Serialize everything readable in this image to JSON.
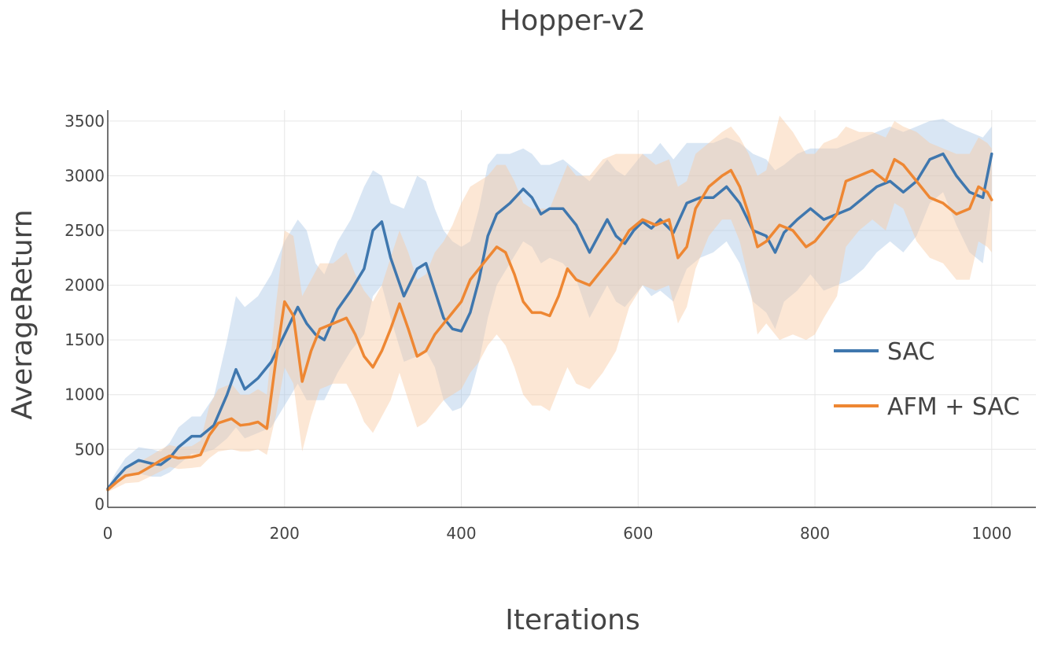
{
  "chart_data": {
    "type": "line",
    "title": "Hopper-v2",
    "xlabel": "Iterations",
    "ylabel": "AverageReturn",
    "xlim": [
      0,
      1050
    ],
    "ylim": [
      -30,
      3600
    ],
    "x_ticks": [
      0,
      200,
      400,
      600,
      800,
      1000
    ],
    "y_ticks": [
      0,
      500,
      1000,
      1500,
      2000,
      2500,
      3000,
      3500
    ],
    "grid": true,
    "legend_position": "right",
    "series": [
      {
        "name": "SAC",
        "color": "#3f77ae",
        "band_color": "#aac8e6",
        "x": [
          0,
          10,
          20,
          35,
          50,
          60,
          70,
          80,
          95,
          105,
          120,
          135,
          145,
          155,
          170,
          185,
          200,
          215,
          225,
          235,
          245,
          260,
          275,
          290,
          300,
          310,
          320,
          335,
          350,
          360,
          370,
          380,
          390,
          400,
          410,
          420,
          430,
          440,
          455,
          470,
          480,
          490,
          500,
          515,
          530,
          545,
          555,
          565,
          575,
          585,
          595,
          605,
          615,
          625,
          640,
          655,
          670,
          685,
          700,
          715,
          730,
          745,
          755,
          765,
          780,
          795,
          810,
          825,
          840,
          855,
          870,
          885,
          900,
          915,
          930,
          945,
          960,
          975,
          990,
          1000
        ],
        "values": [
          140,
          240,
          330,
          400,
          370,
          360,
          420,
          520,
          620,
          620,
          720,
          1000,
          1230,
          1050,
          1150,
          1300,
          1550,
          1800,
          1650,
          1550,
          1500,
          1780,
          1950,
          2150,
          2500,
          2580,
          2250,
          1900,
          2150,
          2200,
          1950,
          1700,
          1600,
          1580,
          1750,
          2050,
          2450,
          2650,
          2750,
          2880,
          2800,
          2650,
          2700,
          2700,
          2550,
          2300,
          2450,
          2600,
          2450,
          2380,
          2500,
          2580,
          2520,
          2600,
          2480,
          2750,
          2800,
          2800,
          2900,
          2750,
          2500,
          2450,
          2300,
          2480,
          2600,
          2700,
          2600,
          2650,
          2700,
          2800,
          2900,
          2950,
          2850,
          2950,
          3150,
          3200,
          3000,
          2850,
          2800,
          3200
        ],
        "upper": [
          160,
          300,
          420,
          520,
          500,
          480,
          560,
          700,
          800,
          800,
          980,
          1500,
          1900,
          1800,
          1900,
          2100,
          2400,
          2600,
          2500,
          2200,
          2100,
          2400,
          2600,
          2900,
          3050,
          3000,
          2750,
          2700,
          3000,
          2950,
          2700,
          2500,
          2400,
          2350,
          2400,
          2700,
          3100,
          3200,
          3200,
          3250,
          3200,
          3100,
          3100,
          3150,
          3050,
          2950,
          3050,
          3150,
          3050,
          3000,
          3100,
          3200,
          3200,
          3300,
          3150,
          3300,
          3300,
          3300,
          3350,
          3300,
          3200,
          3150,
          3050,
          3100,
          3200,
          3250,
          3250,
          3250,
          3300,
          3350,
          3400,
          3450,
          3400,
          3450,
          3500,
          3520,
          3450,
          3400,
          3350,
          3450
        ],
        "lower": [
          120,
          180,
          240,
          280,
          250,
          250,
          290,
          360,
          460,
          460,
          500,
          600,
          700,
          600,
          650,
          700,
          900,
          1100,
          950,
          950,
          950,
          1200,
          1400,
          1550,
          1900,
          2000,
          1700,
          1300,
          1350,
          1400,
          1250,
          950,
          850,
          880,
          1000,
          1300,
          1700,
          2000,
          2200,
          2400,
          2350,
          2200,
          2250,
          2200,
          2050,
          1700,
          1850,
          2000,
          1850,
          1800,
          1900,
          2000,
          1900,
          1950,
          1850,
          2150,
          2250,
          2300,
          2400,
          2200,
          1850,
          1750,
          1600,
          1850,
          1950,
          2100,
          1950,
          2000,
          2050,
          2150,
          2300,
          2400,
          2300,
          2450,
          2750,
          2850,
          2550,
          2300,
          2200,
          2800
        ]
      },
      {
        "name": "AFM + SAC",
        "color": "#ee8733",
        "band_color": "#f9c9a2",
        "x": [
          0,
          10,
          20,
          35,
          50,
          60,
          70,
          80,
          95,
          105,
          115,
          125,
          140,
          150,
          160,
          170,
          180,
          190,
          200,
          210,
          220,
          230,
          240,
          255,
          270,
          280,
          290,
          300,
          310,
          320,
          330,
          340,
          350,
          360,
          370,
          380,
          390,
          400,
          410,
          420,
          430,
          440,
          450,
          460,
          470,
          480,
          490,
          500,
          510,
          520,
          530,
          545,
          560,
          575,
          590,
          605,
          620,
          635,
          645,
          655,
          665,
          680,
          695,
          705,
          715,
          725,
          735,
          745,
          760,
          775,
          790,
          800,
          810,
          825,
          835,
          850,
          865,
          880,
          890,
          900,
          915,
          930,
          945,
          960,
          975,
          985,
          995,
          1000
        ],
        "values": [
          130,
          200,
          260,
          280,
          350,
          400,
          440,
          420,
          430,
          450,
          630,
          740,
          780,
          720,
          730,
          750,
          690,
          1300,
          1850,
          1720,
          1120,
          1400,
          1600,
          1650,
          1700,
          1550,
          1350,
          1250,
          1400,
          1600,
          1830,
          1600,
          1350,
          1400,
          1550,
          1650,
          1750,
          1850,
          2050,
          2150,
          2250,
          2350,
          2300,
          2100,
          1850,
          1750,
          1750,
          1720,
          1900,
          2150,
          2050,
          2000,
          2150,
          2300,
          2500,
          2600,
          2550,
          2600,
          2250,
          2350,
          2700,
          2900,
          3000,
          3050,
          2900,
          2650,
          2350,
          2400,
          2550,
          2500,
          2350,
          2400,
          2500,
          2650,
          2950,
          3000,
          3050,
          2950,
          3150,
          3100,
          2950,
          2800,
          2750,
          2650,
          2700,
          2900,
          2850,
          2780
        ],
        "upper": [
          150,
          260,
          330,
          380,
          450,
          500,
          540,
          520,
          530,
          580,
          900,
          1050,
          1100,
          1000,
          1000,
          1050,
          1000,
          1800,
          2500,
          2450,
          1900,
          2050,
          2200,
          2200,
          2300,
          2100,
          1950,
          1850,
          2000,
          2250,
          2500,
          2300,
          2050,
          2100,
          2300,
          2400,
          2550,
          2750,
          2900,
          2950,
          3000,
          3100,
          3100,
          2950,
          2750,
          2700,
          2700,
          2700,
          2900,
          3100,
          3000,
          3000,
          3150,
          3200,
          3200,
          3200,
          3100,
          3150,
          2900,
          2950,
          3200,
          3300,
          3400,
          3450,
          3350,
          3200,
          3000,
          3050,
          3550,
          3400,
          3200,
          3200,
          3300,
          3350,
          3450,
          3400,
          3400,
          3350,
          3500,
          3450,
          3400,
          3300,
          3250,
          3200,
          3200,
          3350,
          3300,
          3250
        ],
        "lower": [
          110,
          150,
          190,
          200,
          260,
          300,
          340,
          320,
          330,
          340,
          420,
          480,
          500,
          480,
          480,
          500,
          450,
          800,
          1250,
          1100,
          480,
          800,
          1050,
          1100,
          1100,
          950,
          750,
          650,
          800,
          950,
          1200,
          950,
          700,
          750,
          850,
          950,
          1000,
          1050,
          1200,
          1300,
          1450,
          1550,
          1450,
          1250,
          1000,
          900,
          900,
          850,
          1050,
          1250,
          1100,
          1050,
          1200,
          1400,
          1800,
          2000,
          1950,
          2000,
          1650,
          1800,
          2150,
          2450,
          2600,
          2600,
          2400,
          2050,
          1550,
          1650,
          1500,
          1550,
          1500,
          1550,
          1700,
          1900,
          2350,
          2500,
          2600,
          2500,
          2750,
          2700,
          2400,
          2250,
          2200,
          2050,
          2050,
          2400,
          2350,
          2300
        ]
      }
    ]
  }
}
